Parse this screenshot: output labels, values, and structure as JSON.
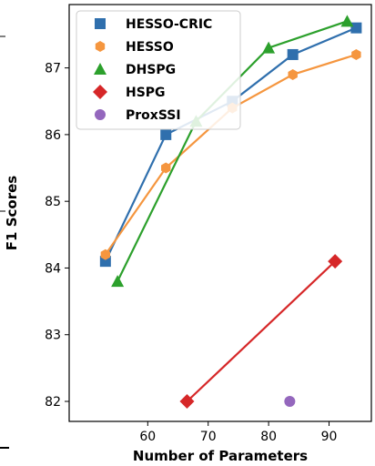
{
  "chart_data": {
    "type": "line",
    "title": "",
    "xlabel": "Number of Parameters",
    "ylabel": "F1 Scores",
    "xlim": [
      47,
      97
    ],
    "ylim": [
      81.7,
      87.95
    ],
    "xticks": [
      60,
      70,
      80,
      90
    ],
    "yticks": [
      82,
      83,
      84,
      85,
      86,
      87
    ],
    "grid": false,
    "legend_position": "upper-left",
    "series": [
      {
        "name": "HESSO-CRIC",
        "color": "#2f6fad",
        "marker": "square",
        "line": true,
        "points": [
          [
            53,
            84.1
          ],
          [
            63,
            86.0
          ],
          [
            74,
            86.5
          ],
          [
            84,
            87.2
          ],
          [
            94.5,
            87.6
          ]
        ]
      },
      {
        "name": "HESSO",
        "color": "#f5963f",
        "marker": "hexagon",
        "line": true,
        "points": [
          [
            53,
            84.2
          ],
          [
            63,
            85.5
          ],
          [
            74,
            86.4
          ],
          [
            84,
            86.9
          ],
          [
            94.5,
            87.2
          ]
        ]
      },
      {
        "name": "DHSPG",
        "color": "#2ca02c",
        "marker": "triangle",
        "line": true,
        "points": [
          [
            55,
            83.8
          ],
          [
            68,
            86.2
          ],
          [
            80,
            87.3
          ],
          [
            93,
            87.7
          ]
        ]
      },
      {
        "name": "HSPG",
        "color": "#d62728",
        "marker": "diamond",
        "line": true,
        "points": [
          [
            66.5,
            82.0
          ],
          [
            91,
            84.1
          ]
        ]
      },
      {
        "name": "ProxSSI",
        "color": "#9467bd",
        "marker": "circle",
        "line": false,
        "points": [
          [
            83.5,
            82.0
          ]
        ]
      }
    ]
  }
}
